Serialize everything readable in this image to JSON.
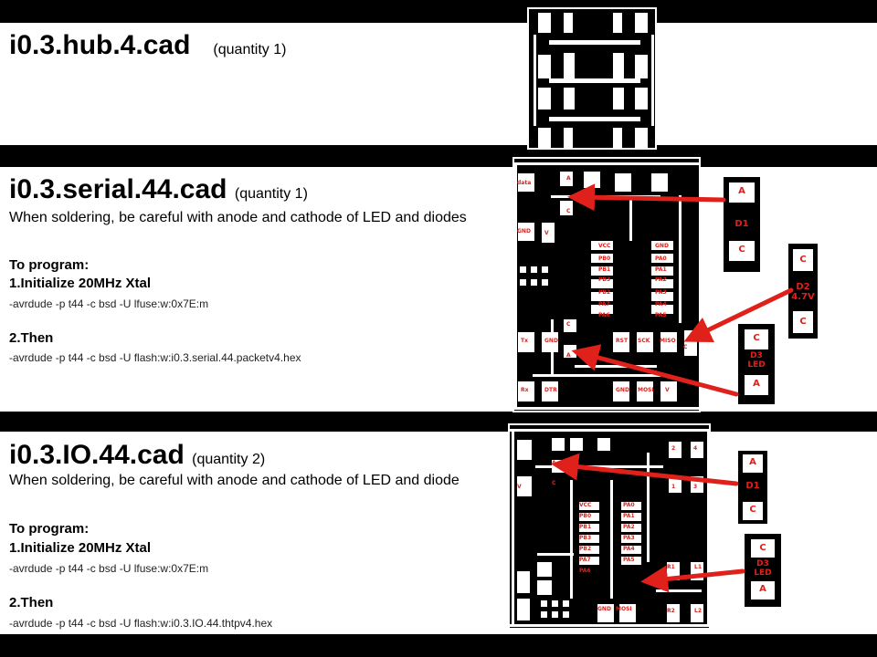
{
  "colors": {
    "accent": "#e0201a",
    "background": "#000000",
    "panel": "#ffffff"
  },
  "sections": [
    {
      "id": "hub",
      "title": "i0.3.hub.4.cad",
      "quantity": "(quantity 1)"
    },
    {
      "id": "serial",
      "title": "i0.3.serial.44.cad",
      "quantity": "(quantity 1)",
      "warning": "When soldering, be careful with anode and cathode of LED and diodes",
      "program_heading": "To program:",
      "step1": "1.Initialize 20MHz Xtal",
      "cmd1": "-avrdude -p t44 -c bsd -U lfuse:w:0x7E:m",
      "step2": "2.Then",
      "cmd2": "-avrdude -p t44 -c bsd -U flash:w:i0.3.serial.44.packetv4.hex"
    },
    {
      "id": "io",
      "title": "i0.3.IO.44.cad",
      "quantity": "(quantity 2)",
      "warning": "When soldering, be careful with anode and cathode of LED and diode",
      "program_heading": "To program:",
      "step1": "1.Initialize 20MHz Xtal",
      "cmd1": "-avrdude -p t44 -c bsd -U lfuse:w:0x7E:m",
      "step2": "2.Then",
      "cmd2": "-avrdude -p t44 -c bsd -U flash:w:i0.3.IO.44.thtpv4.hex"
    }
  ],
  "serial_board_labels": [
    "data",
    "GND",
    "VCC",
    "PB0",
    "PB1",
    "PB3",
    "PB2",
    "PA7",
    "PA6",
    "GND",
    "PA0",
    "PA1",
    "PA2",
    "PA3",
    "PA4",
    "PA5",
    "Tx",
    "GND",
    "Rx",
    "DTR",
    "RST",
    "SCK",
    "MISO",
    "GND",
    "MOSI",
    "V",
    "V",
    "A",
    "C",
    "C",
    "A",
    "C"
  ],
  "io_board_labels": [
    "VCC",
    "PB0",
    "PB1",
    "PB3",
    "PB2",
    "PA7",
    "PA6",
    "PA0",
    "PA1",
    "PA2",
    "PA3",
    "PA4",
    "PA5",
    "GND",
    "MOSI",
    "V",
    "2",
    "4",
    "1",
    "3",
    "R1",
    "L1",
    "R2",
    "L2",
    "A",
    "C"
  ],
  "callouts": [
    {
      "id": "d1-serial",
      "top": "A",
      "label": "D1",
      "bottom": "C"
    },
    {
      "id": "d2-serial",
      "top": "C",
      "label": "D2\n4.7V",
      "bottom": "A"
    },
    {
      "id": "d3-serial",
      "top": "C",
      "label": "D3\nLED",
      "bottom": "A"
    },
    {
      "id": "d1-io",
      "top": "A",
      "label": "D1",
      "bottom": "C"
    },
    {
      "id": "d3-io",
      "top": "C",
      "label": "D3\nLED",
      "bottom": "A"
    }
  ]
}
